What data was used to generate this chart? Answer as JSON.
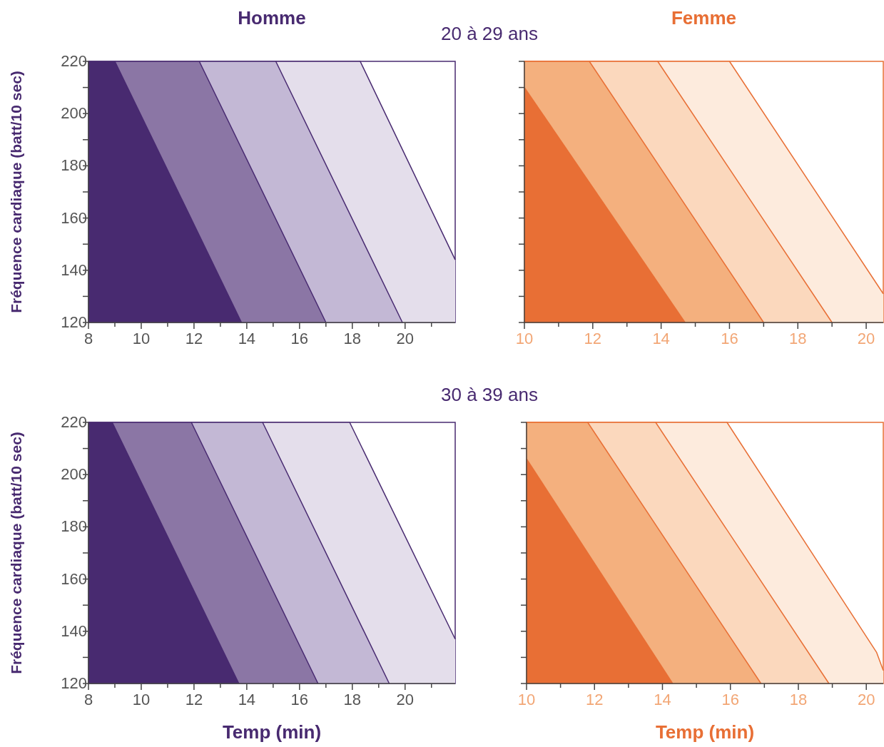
{
  "chart_data": [
    {
      "type": "area",
      "title": "Homme",
      "subtitle": "20 à 29 ans",
      "ylabel": "Fréquence cardiaque (batt/10 sec)",
      "xlim": [
        8,
        21.9
      ],
      "ylim": [
        120,
        220
      ],
      "xticks": [
        8,
        {
          "value": 9,
          "label": null
        },
        10,
        {
          "value": 11,
          "label": null
        },
        12,
        {
          "value": 13,
          "label": null
        },
        14,
        {
          "value": 15,
          "label": null
        },
        16,
        {
          "value": 17,
          "label": null
        },
        18,
        {
          "value": 19,
          "label": null
        },
        20,
        {
          "value": 21,
          "label": null
        }
      ],
      "yticks": [
        120,
        {
          "value": 130,
          "label": null
        },
        140,
        {
          "value": 150,
          "label": null
        },
        160,
        {
          "value": 170,
          "label": null
        },
        180,
        {
          "value": 190,
          "label": null
        },
        200,
        {
          "value": 210,
          "label": null
        },
        220
      ],
      "grid": false,
      "series": [
        {
          "color": "#482a70",
          "x": [
            8,
            9.0,
            13.8
          ],
          "values": [
            220,
            220,
            120
          ]
        },
        {
          "color": "#8b76a5",
          "x": [
            9.0,
            12.2,
            17.0
          ],
          "values": [
            220,
            220,
            120
          ]
        },
        {
          "color": "#c3b8d5",
          "x": [
            12.2,
            15.1,
            19.9
          ],
          "values": [
            220,
            220,
            120
          ]
        },
        {
          "color": "#e4deeb",
          "x": [
            15.1,
            18.3,
            21.9
          ],
          "values": [
            220,
            220,
            144
          ]
        }
      ]
    },
    {
      "type": "area",
      "title": "Femme",
      "xlim": [
        10,
        20.5
      ],
      "ylim": [
        120,
        220
      ],
      "tick_labels": "x",
      "xticks": [
        10,
        {
          "value": 11,
          "label": null
        },
        12,
        {
          "value": 13,
          "label": null
        },
        14,
        {
          "value": 15,
          "label": null
        },
        16,
        {
          "value": 17,
          "label": null
        },
        18,
        {
          "value": 19,
          "label": null
        },
        20
      ],
      "yticks": [
        {
          "value": 120,
          "label": null
        },
        {
          "value": 130,
          "label": null
        },
        {
          "value": 140,
          "label": null
        },
        {
          "value": 150,
          "label": null
        },
        {
          "value": 160,
          "label": null
        },
        {
          "value": 170,
          "label": null
        },
        {
          "value": 180,
          "label": null
        },
        {
          "value": 190,
          "label": null
        },
        {
          "value": 200,
          "label": null
        },
        {
          "value": 210,
          "label": null
        },
        {
          "value": 220,
          "label": null
        }
      ],
      "grid": false,
      "series": [
        {
          "color": "#e86f35",
          "x": [
            10,
            14.7
          ],
          "values": [
            210,
            120
          ]
        },
        {
          "color": "#f4b07e",
          "x": [
            10,
            11.9,
            17.0
          ],
          "values": [
            220,
            220,
            120
          ]
        },
        {
          "color": "#fbd8bd",
          "x": [
            10,
            13.9,
            19.0
          ],
          "values": [
            220,
            220,
            120
          ]
        },
        {
          "color": "#fdebdd",
          "x": [
            10,
            16.0,
            20.5
          ],
          "values": [
            220,
            220,
            131
          ]
        }
      ]
    },
    {
      "type": "area",
      "subtitle": "30 à 39 ans",
      "xlabel": "Temp (min)",
      "ylabel": "Fréquence cardiaque (batt/10 sec)",
      "xlim": [
        8,
        21.9
      ],
      "ylim": [
        120,
        220
      ],
      "xticks": [
        8,
        {
          "value": 9,
          "label": null
        },
        10,
        {
          "value": 11,
          "label": null
        },
        12,
        {
          "value": 13,
          "label": null
        },
        14,
        {
          "value": 15,
          "label": null
        },
        16,
        {
          "value": 17,
          "label": null
        },
        18,
        {
          "value": 19,
          "label": null
        },
        20,
        {
          "value": 21,
          "label": null
        }
      ],
      "yticks": [
        120,
        {
          "value": 130,
          "label": null
        },
        140,
        {
          "value": 150,
          "label": null
        },
        160,
        {
          "value": 170,
          "label": null
        },
        180,
        {
          "value": 190,
          "label": null
        },
        200,
        {
          "value": 210,
          "label": null
        },
        220
      ],
      "grid": false,
      "series": [
        {
          "color": "#482a70",
          "x": [
            8,
            8.9,
            13.7
          ],
          "values": [
            220,
            220,
            120
          ]
        },
        {
          "color": "#8b76a5",
          "x": [
            8.9,
            11.9,
            16.7
          ],
          "values": [
            220,
            220,
            120
          ]
        },
        {
          "color": "#c3b8d5",
          "x": [
            11.9,
            14.6,
            19.4
          ],
          "values": [
            220,
            220,
            120
          ]
        },
        {
          "color": "#e4deeb",
          "x": [
            14.6,
            17.9,
            21.9
          ],
          "values": [
            220,
            220,
            137
          ]
        }
      ]
    },
    {
      "type": "area",
      "xlabel": "Temp (min)",
      "xlim": [
        10,
        20.5
      ],
      "ylim": [
        120,
        220
      ],
      "tick_labels": "x",
      "xticks": [
        10,
        {
          "value": 11,
          "label": null
        },
        12,
        {
          "value": 13,
          "label": null
        },
        14,
        {
          "value": 15,
          "label": null
        },
        16,
        {
          "value": 17,
          "label": null
        },
        18,
        {
          "value": 19,
          "label": null
        },
        20
      ],
      "yticks": [
        {
          "value": 120,
          "label": null
        },
        {
          "value": 130,
          "label": null
        },
        {
          "value": 140,
          "label": null
        },
        {
          "value": 150,
          "label": null
        },
        {
          "value": 160,
          "label": null
        },
        {
          "value": 170,
          "label": null
        },
        {
          "value": 180,
          "label": null
        },
        {
          "value": 190,
          "label": null
        },
        {
          "value": 200,
          "label": null
        },
        {
          "value": 210,
          "label": null
        },
        {
          "value": 220,
          "label": null
        }
      ],
      "grid": false,
      "series": [
        {
          "color": "#e86f35",
          "x": [
            10,
            14.3
          ],
          "values": [
            206,
            120
          ]
        },
        {
          "color": "#f4b07e",
          "x": [
            10,
            11.8,
            16.9
          ],
          "values": [
            220,
            220,
            120
          ]
        },
        {
          "color": "#fbd8bd",
          "x": [
            10,
            13.8,
            18.9
          ],
          "values": [
            220,
            220,
            120
          ]
        },
        {
          "color": "#fdebdd",
          "x": [
            10,
            15.9,
            20.3,
            20.5
          ],
          "values": [
            220,
            220,
            132,
            125
          ]
        }
      ]
    }
  ]
}
